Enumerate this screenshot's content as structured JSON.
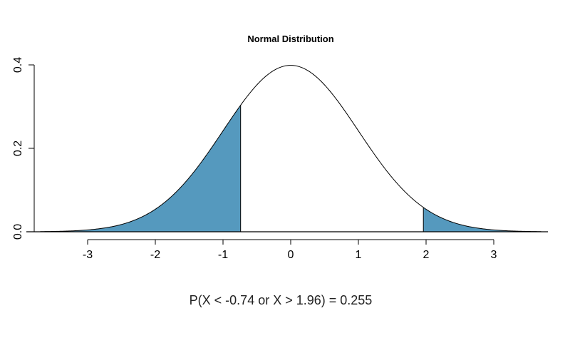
{
  "chart_data": {
    "type": "area",
    "title": "Normal Distribution",
    "xlabel": "",
    "ylabel": "",
    "distribution": {
      "name": "normal",
      "mean": 0,
      "sd": 1
    },
    "xlim": [
      -3.7,
      3.7
    ],
    "ylim": [
      0,
      0.4
    ],
    "x_ticks": [
      -3,
      -2,
      -1,
      0,
      1,
      2,
      3
    ],
    "x_tick_labels": [
      "-3",
      "-2",
      "-1",
      "0",
      "1",
      "2",
      "3"
    ],
    "y_ticks": [
      0.0,
      0.2,
      0.4
    ],
    "y_tick_labels": [
      "0.0",
      "0.2",
      "0.4"
    ],
    "shaded_regions": [
      {
        "from": -3.7,
        "to": -0.74
      },
      {
        "from": 1.96,
        "to": 3.7
      }
    ],
    "annotation": "P(X < -0.74 or X > 1.96) = 0.255",
    "grid": false,
    "colors": {
      "fill": "#5599be",
      "line": "#000000",
      "axis": "#000000",
      "background": "#ffffff"
    }
  }
}
